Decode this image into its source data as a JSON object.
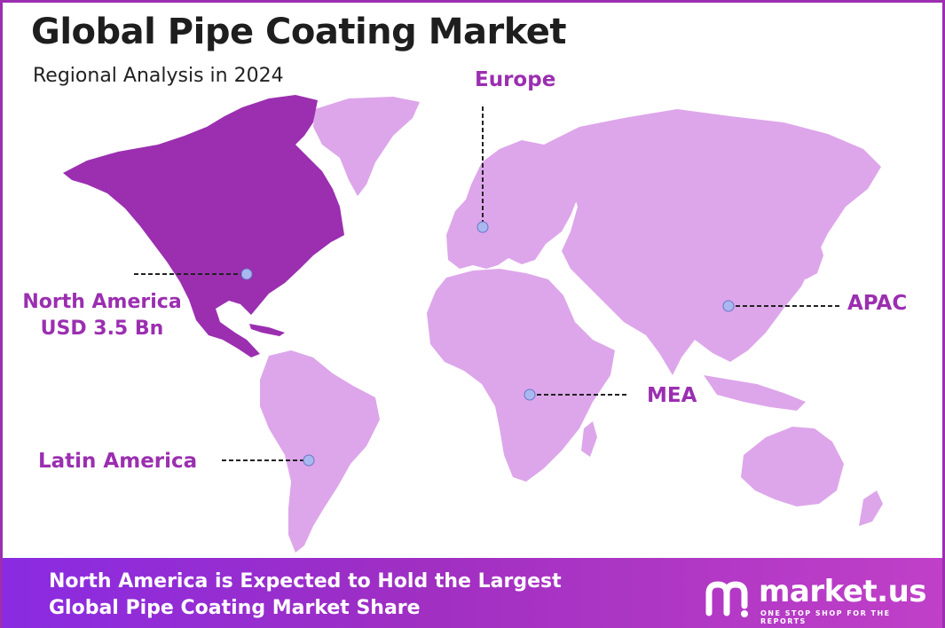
{
  "title": "Global Pipe Coating Market",
  "subtitle": "Regional Analysis in 2024",
  "regions": {
    "north_america": {
      "name": "North America",
      "value": "USD 3.5 Bn"
    },
    "europe": {
      "name": "Europe"
    },
    "apac": {
      "name": "APAC"
    },
    "mea": {
      "name": "MEA"
    },
    "latin_america": {
      "name": "Latin America"
    }
  },
  "footer": {
    "line1": "North America is Expected to Hold the Largest",
    "line2": "Global Pipe Coating Market Share"
  },
  "logo": {
    "name": "market.us",
    "tagline": "ONE STOP SHOP FOR THE REPORTS"
  },
  "colors": {
    "highlight_region": "#9b2fb0",
    "other_regions": "#dda6ea",
    "accent_text": "#9b2fb0",
    "marker": "#a9b8ef"
  },
  "icons": [
    "market-us-logo-icon"
  ]
}
